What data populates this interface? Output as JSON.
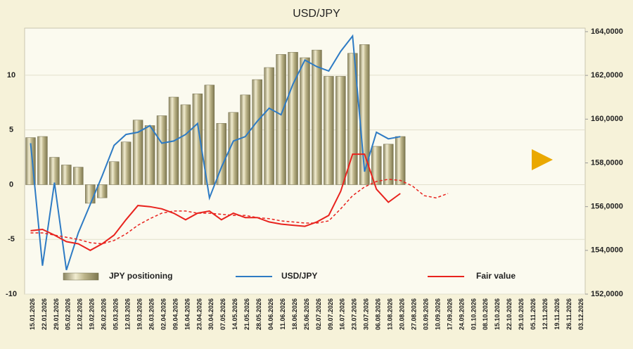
{
  "chart_data": {
    "type": "combo",
    "title": "USD/JPY",
    "categories": [
      "15.01.2026",
      "22.01.2026",
      "29.01.2026",
      "05.02.2026",
      "12.02.2026",
      "19.02.2026",
      "26.02.2026",
      "05.03.2026",
      "12.03.2026",
      "19.03.2026",
      "26.03.2026",
      "02.04.2026",
      "09.04.2026",
      "16.04.2026",
      "23.04.2026",
      "30.04.2026",
      "07.05.2026",
      "14.05.2026",
      "21.05.2026",
      "28.05.2026",
      "04.06.2026",
      "11.06.2026",
      "18.06.2026",
      "25.06.2026",
      "02.07.2026",
      "09.07.2026",
      "16.07.2026",
      "23.07.2026",
      "30.07.2026",
      "06.08.2026",
      "13.08.2026",
      "20.08.2026",
      "27.08.2026",
      "03.09.2026",
      "10.09.2026",
      "17.09.2026",
      "24.09.2026",
      "01.10.2026",
      "08.10.2026",
      "15.10.2026",
      "22.10.2026",
      "29.10.2026",
      "05.11.2026",
      "12.11.2026",
      "19.11.2026",
      "26.11.2026",
      "03.12.2026"
    ],
    "series": [
      {
        "name": "JPY positioning",
        "type": "bar",
        "axis": "y",
        "color": "#bdb58a",
        "values": [
          4.3,
          4.4,
          2.5,
          1.8,
          1.6,
          -1.7,
          -1.2,
          2.1,
          3.9,
          5.9,
          5.4,
          6.3,
          8.0,
          7.3,
          8.3,
          9.1,
          5.6,
          6.6,
          8.2,
          9.6,
          10.7,
          11.9,
          12.1,
          11.6,
          12.3,
          9.9,
          9.9,
          12.0,
          12.8,
          3.5,
          3.7,
          4.4,
          null,
          null,
          null,
          null,
          null,
          null,
          null,
          null,
          null,
          null,
          null,
          null,
          null,
          null,
          null
        ]
      },
      {
        "name": "USD/JPY",
        "type": "line",
        "axis": "y2",
        "color": "#2e7bc4",
        "values": [
          158.9,
          153.3,
          157.1,
          153.1,
          154.8,
          156.1,
          157.4,
          158.8,
          159.3,
          159.4,
          159.7,
          158.9,
          159.0,
          159.3,
          159.8,
          156.4,
          157.8,
          159.0,
          159.2,
          159.9,
          160.5,
          160.2,
          161.6,
          162.7,
          162.4,
          162.2,
          163.1,
          163.8,
          157.6,
          159.4,
          159.1,
          159.2,
          null,
          null,
          null,
          null,
          null,
          null,
          null,
          null,
          null,
          null,
          null,
          null,
          null,
          null,
          null
        ]
      },
      {
        "name": "Fair value",
        "type": "line",
        "axis": "y2",
        "color": "#e8231e",
        "values": [
          154.9,
          154.96,
          154.7,
          154.4,
          154.3,
          154.0,
          154.3,
          154.7,
          155.4,
          156.05,
          156.0,
          155.9,
          155.7,
          155.4,
          155.7,
          155.8,
          155.4,
          155.7,
          155.5,
          155.5,
          155.3,
          155.2,
          155.15,
          155.1,
          155.3,
          155.6,
          156.7,
          158.4,
          158.4,
          156.8,
          156.2,
          156.6,
          null,
          null,
          null,
          null,
          null,
          null,
          null,
          null,
          null,
          null,
          null,
          null,
          null,
          null,
          null
        ]
      },
      {
        "type": "line",
        "axis": "y2",
        "color": "#e8231e",
        "dashed": true,
        "values": [
          154.8,
          154.8,
          154.7,
          154.6,
          154.5,
          154.35,
          154.3,
          154.45,
          154.75,
          155.15,
          155.45,
          155.7,
          155.8,
          155.8,
          155.7,
          155.7,
          155.65,
          155.6,
          155.6,
          155.5,
          155.45,
          155.35,
          155.3,
          155.25,
          155.25,
          155.35,
          155.9,
          156.5,
          156.9,
          157.15,
          157.25,
          157.2,
          156.95,
          156.5,
          156.4,
          156.6,
          null,
          null,
          null,
          null,
          null,
          null,
          null,
          null,
          null,
          null,
          null
        ]
      }
    ],
    "ylim": [
      -10,
      14.3
    ],
    "yticks": [
      -10,
      -5,
      0,
      5,
      10
    ],
    "y2lim": [
      152,
      164.16
    ],
    "y2ticks": [
      {
        "value": 152,
        "label": "152,0000"
      },
      {
        "value": 154,
        "label": "154,0000"
      },
      {
        "value": 156,
        "label": "156,0000"
      },
      {
        "value": 158,
        "label": "158,0000"
      },
      {
        "value": 160,
        "label": "160,0000"
      },
      {
        "value": 162,
        "label": "162,0000"
      },
      {
        "value": 164,
        "label": "164,0000"
      }
    ],
    "grid": true
  }
}
